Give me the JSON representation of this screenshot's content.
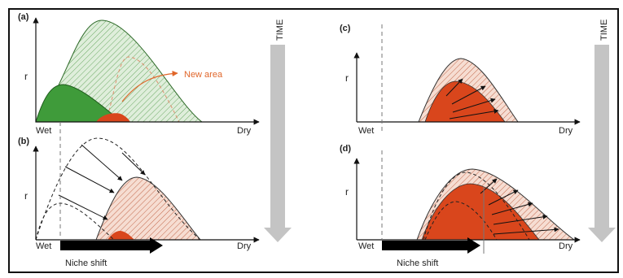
{
  "panels": {
    "a": {
      "label": "(a)",
      "y_label": "r",
      "x_left": "Wet",
      "x_right": "Dry",
      "annotation": "New area"
    },
    "b": {
      "label": "(b)",
      "y_label": "r",
      "x_left": "Wet",
      "x_right": "Dry",
      "shift_label": "Niche shift"
    },
    "c": {
      "label": "(c)",
      "y_label": "r",
      "x_left": "Wet",
      "x_right": "Dry"
    },
    "d": {
      "label": "(d)",
      "y_label": "r",
      "x_left": "Wet",
      "x_right": "Dry",
      "shift_label": "Niche shift"
    }
  },
  "time": {
    "label": "TIME"
  },
  "colors": {
    "light_green": "#d9ead3",
    "dark_green": "#3f9b3a",
    "pale_salmon": "#f3d6c9",
    "red_orange": "#d9461c",
    "time_arrow": "#c4c4c4",
    "annotation": "#e0662a"
  }
}
